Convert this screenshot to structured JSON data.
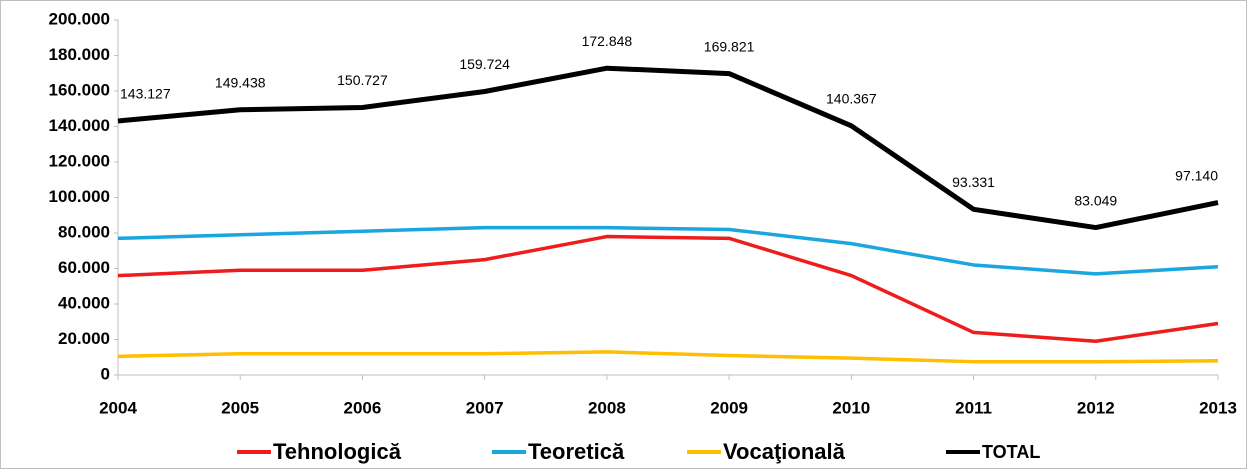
{
  "chart_data": {
    "type": "line",
    "x": [
      2004,
      2005,
      2006,
      2007,
      2008,
      2009,
      2010,
      2011,
      2012,
      2013
    ],
    "xlim": [
      2004,
      2013
    ],
    "xticks": [
      2004,
      2005,
      2006,
      2007,
      2008,
      2009,
      2010,
      2011,
      2012,
      2013
    ],
    "ylim": [
      0,
      200000
    ],
    "yticks": [
      0,
      {
        "value": 20000,
        "label": "20.000"
      },
      {
        "value": 40000,
        "label": "40.000"
      },
      {
        "value": 60000,
        "label": "60.000"
      },
      {
        "value": 80000,
        "label": "80.000"
      },
      {
        "value": 100000,
        "label": "100.000"
      },
      {
        "value": 120000,
        "label": "120.000"
      },
      {
        "value": 140000,
        "label": "140.000"
      },
      {
        "value": 160000,
        "label": "160.000"
      },
      {
        "value": 180000,
        "label": "180.000"
      },
      {
        "value": 200000,
        "label": "200.000"
      }
    ],
    "grid": false,
    "legend": "bottom",
    "series": [
      {
        "name": "Tehnologică",
        "color": "#ee1c1c",
        "values": [
          56000,
          59000,
          59000,
          65000,
          78000,
          77000,
          56000,
          24000,
          19000,
          29000
        ]
      },
      {
        "name": "Teoretică",
        "color": "#1aa7e0",
        "values": [
          77000,
          79000,
          81000,
          83000,
          83000,
          82000,
          74000,
          62000,
          57000,
          61000
        ]
      },
      {
        "name": "Vocaţională",
        "color": "#ffbf00",
        "values": [
          10500,
          12000,
          12000,
          12000,
          13000,
          11000,
          9500,
          7500,
          7500,
          8000
        ]
      },
      {
        "name": "TOTAL",
        "color": "#000000",
        "values": [
          143127,
          149438,
          150727,
          159724,
          172848,
          169821,
          140367,
          93331,
          83049,
          97140
        ],
        "value_labels": [
          "143.127",
          "149.438",
          "150.727",
          "159.724",
          "172.848",
          "169.821",
          "140.367",
          "93.331",
          "83.049",
          "97.140"
        ]
      }
    ]
  }
}
